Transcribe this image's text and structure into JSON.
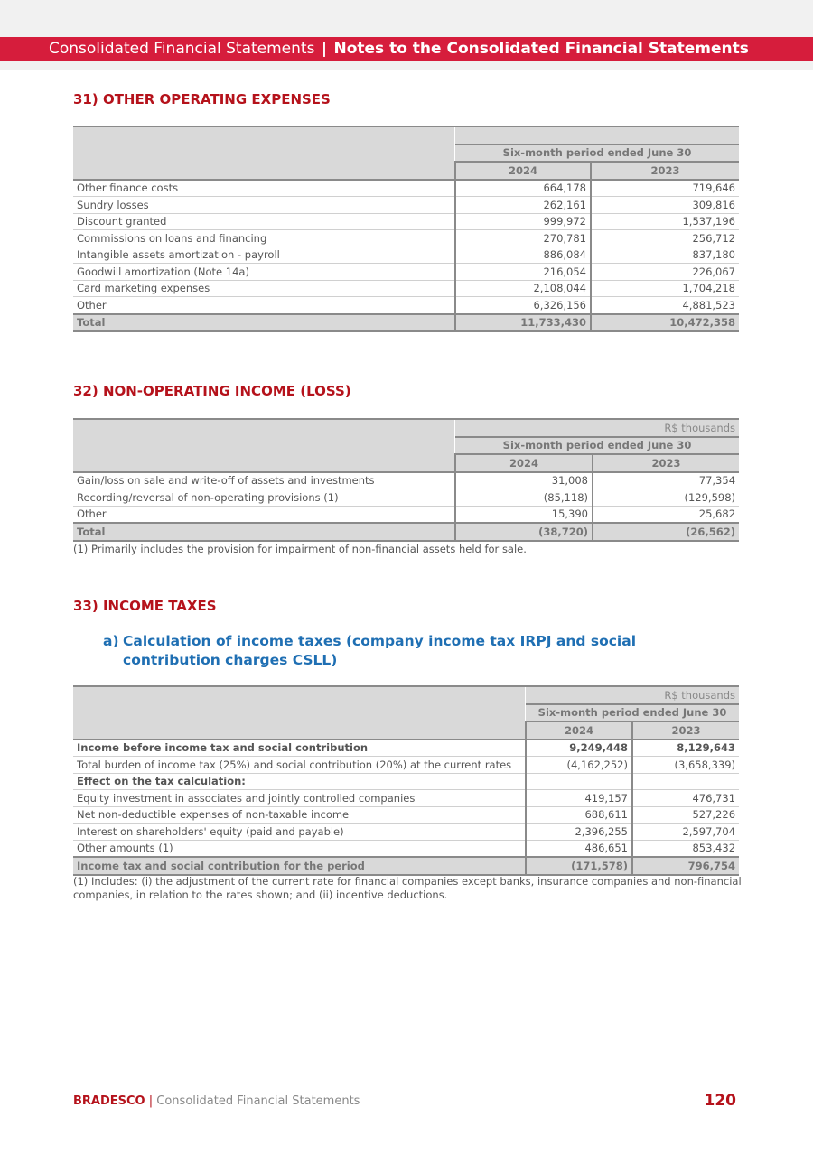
{
  "header": {
    "left": "Consolidated Financial Statements",
    "separator": "|",
    "right": "Notes to the Consolidated Financial Statements"
  },
  "s31": {
    "title": "31) OTHER OPERATING EXPENSES",
    "table": {
      "period": "Six-month period ended June 30",
      "years": [
        "2024",
        "2023"
      ],
      "rows": [
        {
          "cells": [
            "Other finance costs",
            "664,178",
            "719,646"
          ]
        },
        {
          "cells": [
            "Sundry losses",
            "262,161",
            "309,816"
          ]
        },
        {
          "cells": [
            "Discount granted",
            "999,972",
            "1,537,196"
          ]
        },
        {
          "cells": [
            "Commissions on loans and financing",
            "270,781",
            "256,712"
          ]
        },
        {
          "cells": [
            "Intangible assets amortization - payroll",
            "886,084",
            "837,180"
          ]
        },
        {
          "cells": [
            "Goodwill amortization (Note 14a)",
            "216,054",
            "226,067"
          ]
        },
        {
          "cells": [
            "Card marketing expenses",
            "2,108,044",
            "1,704,218"
          ]
        },
        {
          "cells": [
            "Other",
            "6,326,156",
            "4,881,523"
          ]
        }
      ],
      "total": [
        "Total",
        "11,733,430",
        "10,472,358"
      ]
    }
  },
  "s32": {
    "title": "32) NON-OPERATING INCOME (LOSS)",
    "table": {
      "unit": "R$ thousands",
      "period": "Six-month period ended June 30",
      "years": [
        "2024",
        "2023"
      ],
      "rows": [
        {
          "cells": [
            "Gain/loss on sale and write-off of assets and investments",
            "31,008",
            "77,354"
          ]
        },
        {
          "cells": [
            "Recording/reversal of non-operating provisions (1)",
            "(85,118)",
            "(129,598)"
          ]
        },
        {
          "cells": [
            "Other",
            "15,390",
            "25,682"
          ]
        }
      ],
      "total": [
        "Total",
        "(38,720)",
        "(26,562)"
      ],
      "footnote": "(1) Primarily includes the provision for impairment of non-financial assets held for sale."
    }
  },
  "s33": {
    "title": "33) INCOME TAXES",
    "subtitle": {
      "marker": "a)",
      "text": "Calculation of income taxes (company income tax IRPJ and social contribution charges CSLL)"
    },
    "table": {
      "unit": "R$ thousands",
      "period": "Six-month period ended June 30",
      "years": [
        "2024",
        "2023"
      ],
      "rows": [
        {
          "cells": [
            "Income before income tax and social contribution",
            "9,249,448",
            "8,129,643"
          ],
          "bold": true
        },
        {
          "cells": [
            "Total burden of income tax (25%) and social contribution (20%) at the current rates",
            "(4,162,252)",
            "(3,658,339)"
          ]
        },
        {
          "cells": [
            "Effect on the tax calculation:"
          ],
          "bold": true
        },
        {
          "cells": [
            "Equity investment in associates and jointly controlled companies",
            "419,157",
            "476,731"
          ]
        },
        {
          "cells": [
            "Net non-deductible expenses of non-taxable income",
            "688,611",
            "527,226"
          ]
        },
        {
          "cells": [
            "Interest on shareholders' equity (paid and payable)",
            "2,396,255",
            "2,597,704"
          ]
        },
        {
          "cells": [
            "Other amounts (1)",
            "486,651",
            "853,432"
          ]
        }
      ],
      "total": [
        "Income tax and social contribution for the period",
        "(171,578)",
        "796,754"
      ],
      "footnote": "(1) Includes: (i) the adjustment of the current rate for financial companies except banks, insurance companies and non-financial companies, in relation to the rates shown; and (ii) incentive deductions."
    }
  },
  "footer": {
    "brand": "BRADESCO",
    "separator": "|",
    "text": "Consolidated Financial Statements",
    "page": "120"
  }
}
